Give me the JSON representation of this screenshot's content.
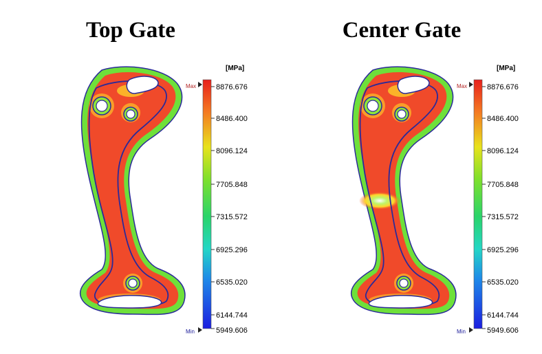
{
  "panels": [
    {
      "title": "Top Gate",
      "legend": {
        "unit": "[MPa]",
        "max_label": "Max",
        "min_label": "Min",
        "ticks": [
          "8876.676",
          "8486.400",
          "8096.124",
          "7705.848",
          "7315.572",
          "6925.296",
          "6535.020",
          "6144.744",
          "5949.606"
        ]
      }
    },
    {
      "title": "Center Gate",
      "legend": {
        "unit": "[MPa]",
        "max_label": "Max",
        "min_label": "Min",
        "ticks": [
          "8876.676",
          "8486.400",
          "8096.124",
          "7705.848",
          "7315.572",
          "6925.296",
          "6535.020",
          "6144.744",
          "5949.606"
        ]
      }
    }
  ],
  "colors": {
    "max_marker": "#b22222",
    "min_marker": "#1a1a99",
    "contour_line": "#2a2a9a",
    "high": "#f04a2a",
    "mid": "#66dd33"
  }
}
